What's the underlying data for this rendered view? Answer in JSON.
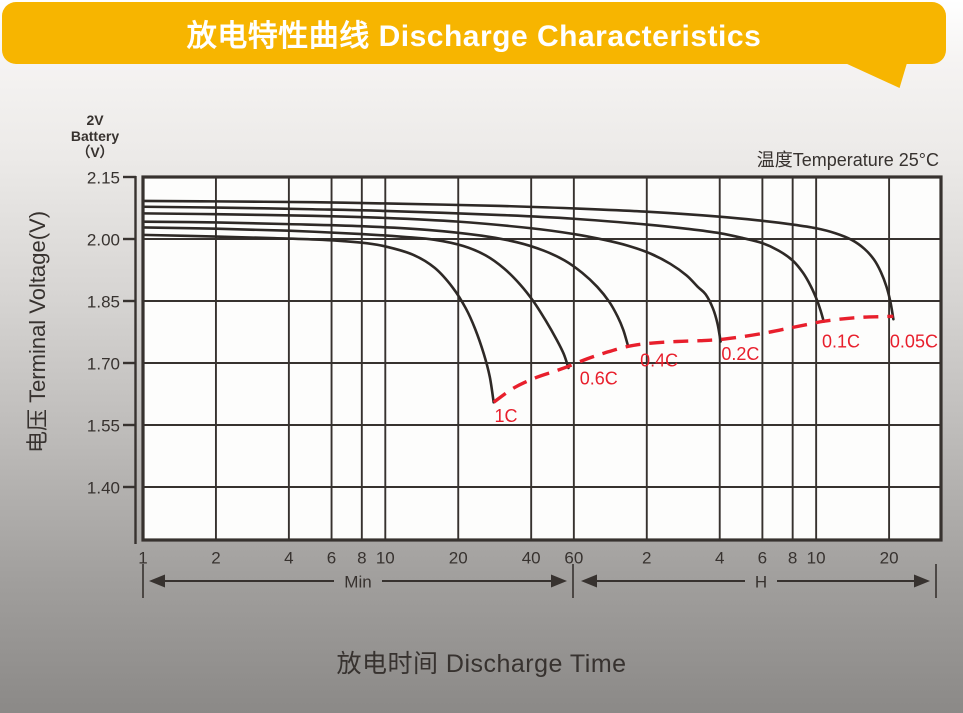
{
  "banner": {
    "title": "放电特性曲线 Discharge Characteristics",
    "color": "#f7b500"
  },
  "battery_label": {
    "lines": [
      "2V",
      "Battery",
      "（V）"
    ]
  },
  "y_axis": {
    "title": "电压 Terminal Voltage(V)"
  },
  "x_axis": {
    "title": "放电时间 Discharge Time",
    "min_label": "Min",
    "h_label": "H"
  },
  "chart_data": {
    "type": "line",
    "title": "放电特性曲线 Discharge Characteristics",
    "annotation": "温度Temperature 25°C",
    "x_scale": "log",
    "x_unit": "minutes (1 min – ~30 h)",
    "x_range_minutes": [
      1,
      2000
    ],
    "ylabel": "电压 Terminal Voltage(V)",
    "ylim": [
      1.28,
      2.15
    ],
    "grid": true,
    "colors": {
      "curve": "#2e2926",
      "grid": "#37322f",
      "red": "#e81f2c",
      "banner": "#f7b500"
    },
    "y_ticks": [
      {
        "v": 2.15,
        "label": "2.15"
      },
      {
        "v": 2.0,
        "label": "2.00"
      },
      {
        "v": 1.85,
        "label": "1.85"
      },
      {
        "v": 1.7,
        "label": "1.70"
      },
      {
        "v": 1.55,
        "label": "1.55"
      },
      {
        "v": 1.4,
        "label": "1.40"
      }
    ],
    "x_ticks": [
      {
        "t": 1,
        "label": "1"
      },
      {
        "t": 2,
        "label": "2"
      },
      {
        "t": 4,
        "label": "4"
      },
      {
        "t": 6,
        "label": "6"
      },
      {
        "t": 8,
        "label": "8"
      },
      {
        "t": 10,
        "label": "10"
      },
      {
        "t": 20,
        "label": "20"
      },
      {
        "t": 40,
        "label": "40"
      },
      {
        "t": 60,
        "label": "60"
      },
      {
        "t": 120,
        "label": "2"
      },
      {
        "t": 240,
        "label": "4"
      },
      {
        "t": 360,
        "label": "6"
      },
      {
        "t": 480,
        "label": "8"
      },
      {
        "t": 600,
        "label": "10"
      },
      {
        "t": 1200,
        "label": "20"
      }
    ],
    "series": [
      {
        "name": "1C",
        "points": [
          [
            1,
            2.01
          ],
          [
            2,
            2.006
          ],
          [
            3.5,
            2.002
          ],
          [
            5.5,
            1.998
          ],
          [
            8,
            1.991
          ],
          [
            10,
            1.982
          ],
          [
            13,
            1.962
          ],
          [
            16,
            1.93
          ],
          [
            19,
            1.882
          ],
          [
            21.5,
            1.832
          ],
          [
            23.5,
            1.782
          ],
          [
            25.5,
            1.722
          ],
          [
            27,
            1.666
          ],
          [
            28,
            1.605
          ]
        ]
      },
      {
        "name": "0.6C",
        "points": [
          [
            1,
            2.028
          ],
          [
            2,
            2.025
          ],
          [
            4,
            2.02
          ],
          [
            8,
            2.012
          ],
          [
            12,
            2.005
          ],
          [
            16,
            1.998
          ],
          [
            21,
            1.983
          ],
          [
            26,
            1.96
          ],
          [
            31,
            1.928
          ],
          [
            36,
            1.89
          ],
          [
            41,
            1.848
          ],
          [
            46,
            1.802
          ],
          [
            51,
            1.756
          ],
          [
            54.5,
            1.722
          ],
          [
            57,
            1.688
          ]
        ]
      },
      {
        "name": "0.4C",
        "points": [
          [
            1,
            2.042
          ],
          [
            2,
            2.04
          ],
          [
            4,
            2.036
          ],
          [
            8,
            2.031
          ],
          [
            15,
            2.022
          ],
          [
            25,
            2.008
          ],
          [
            35,
            1.992
          ],
          [
            45,
            1.972
          ],
          [
            55,
            1.948
          ],
          [
            65,
            1.918
          ],
          [
            75,
            1.884
          ],
          [
            84,
            1.848
          ],
          [
            91,
            1.812
          ],
          [
            96,
            1.78
          ],
          [
            100,
            1.745
          ]
        ]
      },
      {
        "name": "0.2C",
        "points": [
          [
            1,
            2.062
          ],
          [
            2,
            2.06
          ],
          [
            5,
            2.056
          ],
          [
            10,
            2.051
          ],
          [
            20,
            2.042
          ],
          [
            40,
            2.026
          ],
          [
            60,
            2.012
          ],
          [
            80,
            1.998
          ],
          [
            100,
            1.984
          ],
          [
            125,
            1.964
          ],
          [
            150,
            1.94
          ],
          [
            175,
            1.912
          ],
          [
            195,
            1.884
          ],
          [
            210,
            1.866
          ],
          [
            225,
            1.832
          ],
          [
            235,
            1.795
          ],
          [
            242,
            1.752
          ]
        ]
      },
      {
        "name": "0.1C",
        "points": [
          [
            1,
            2.078
          ],
          [
            2,
            2.076
          ],
          [
            5,
            2.072
          ],
          [
            10,
            2.068
          ],
          [
            30,
            2.058
          ],
          [
            60,
            2.049
          ],
          [
            120,
            2.035
          ],
          [
            180,
            2.024
          ],
          [
            240,
            2.014
          ],
          [
            300,
            2.002
          ],
          [
            360,
            1.99
          ],
          [
            420,
            1.972
          ],
          [
            480,
            1.948
          ],
          [
            530,
            1.918
          ],
          [
            570,
            1.886
          ],
          [
            605,
            1.852
          ],
          [
            628,
            1.824
          ],
          [
            645,
            1.8
          ]
        ]
      },
      {
        "name": "0.05C",
        "points": [
          [
            1,
            2.092
          ],
          [
            2,
            2.091
          ],
          [
            5,
            2.089
          ],
          [
            10,
            2.086
          ],
          [
            30,
            2.08
          ],
          [
            60,
            2.074
          ],
          [
            120,
            2.066
          ],
          [
            240,
            2.054
          ],
          [
            360,
            2.044
          ],
          [
            480,
            2.035
          ],
          [
            600,
            2.026
          ],
          [
            720,
            2.014
          ],
          [
            840,
            1.998
          ],
          [
            950,
            1.976
          ],
          [
            1040,
            1.95
          ],
          [
            1110,
            1.92
          ],
          [
            1170,
            1.885
          ],
          [
            1215,
            1.848
          ],
          [
            1250,
            1.806
          ]
        ]
      }
    ],
    "envelope": {
      "name": "discharge-end-line",
      "style": "dashed-red",
      "points": [
        [
          28,
          1.605
        ],
        [
          34,
          1.64
        ],
        [
          42,
          1.665
        ],
        [
          50,
          1.68
        ],
        [
          57,
          1.692
        ],
        [
          68,
          1.71
        ],
        [
          80,
          1.724
        ],
        [
          100,
          1.74
        ],
        [
          125,
          1.748
        ],
        [
          160,
          1.752
        ],
        [
          200,
          1.754
        ],
        [
          242,
          1.757
        ],
        [
          300,
          1.764
        ],
        [
          380,
          1.774
        ],
        [
          470,
          1.785
        ],
        [
          560,
          1.794
        ],
        [
          645,
          1.801
        ],
        [
          780,
          1.807
        ],
        [
          950,
          1.811
        ],
        [
          1100,
          1.812
        ],
        [
          1250,
          1.813
        ]
      ]
    },
    "curve_labels": [
      {
        "text": "1C",
        "t": 31.5,
        "v": 1.572
      },
      {
        "text": "0.6C",
        "t": 76,
        "v": 1.662
      },
      {
        "text": "0.4C",
        "t": 135,
        "v": 1.706
      },
      {
        "text": "0.2C",
        "t": 292,
        "v": 1.722
      },
      {
        "text": "0.1C",
        "t": 760,
        "v": 1.752
      },
      {
        "text": "0.05C",
        "t": 1520,
        "v": 1.752
      }
    ]
  }
}
